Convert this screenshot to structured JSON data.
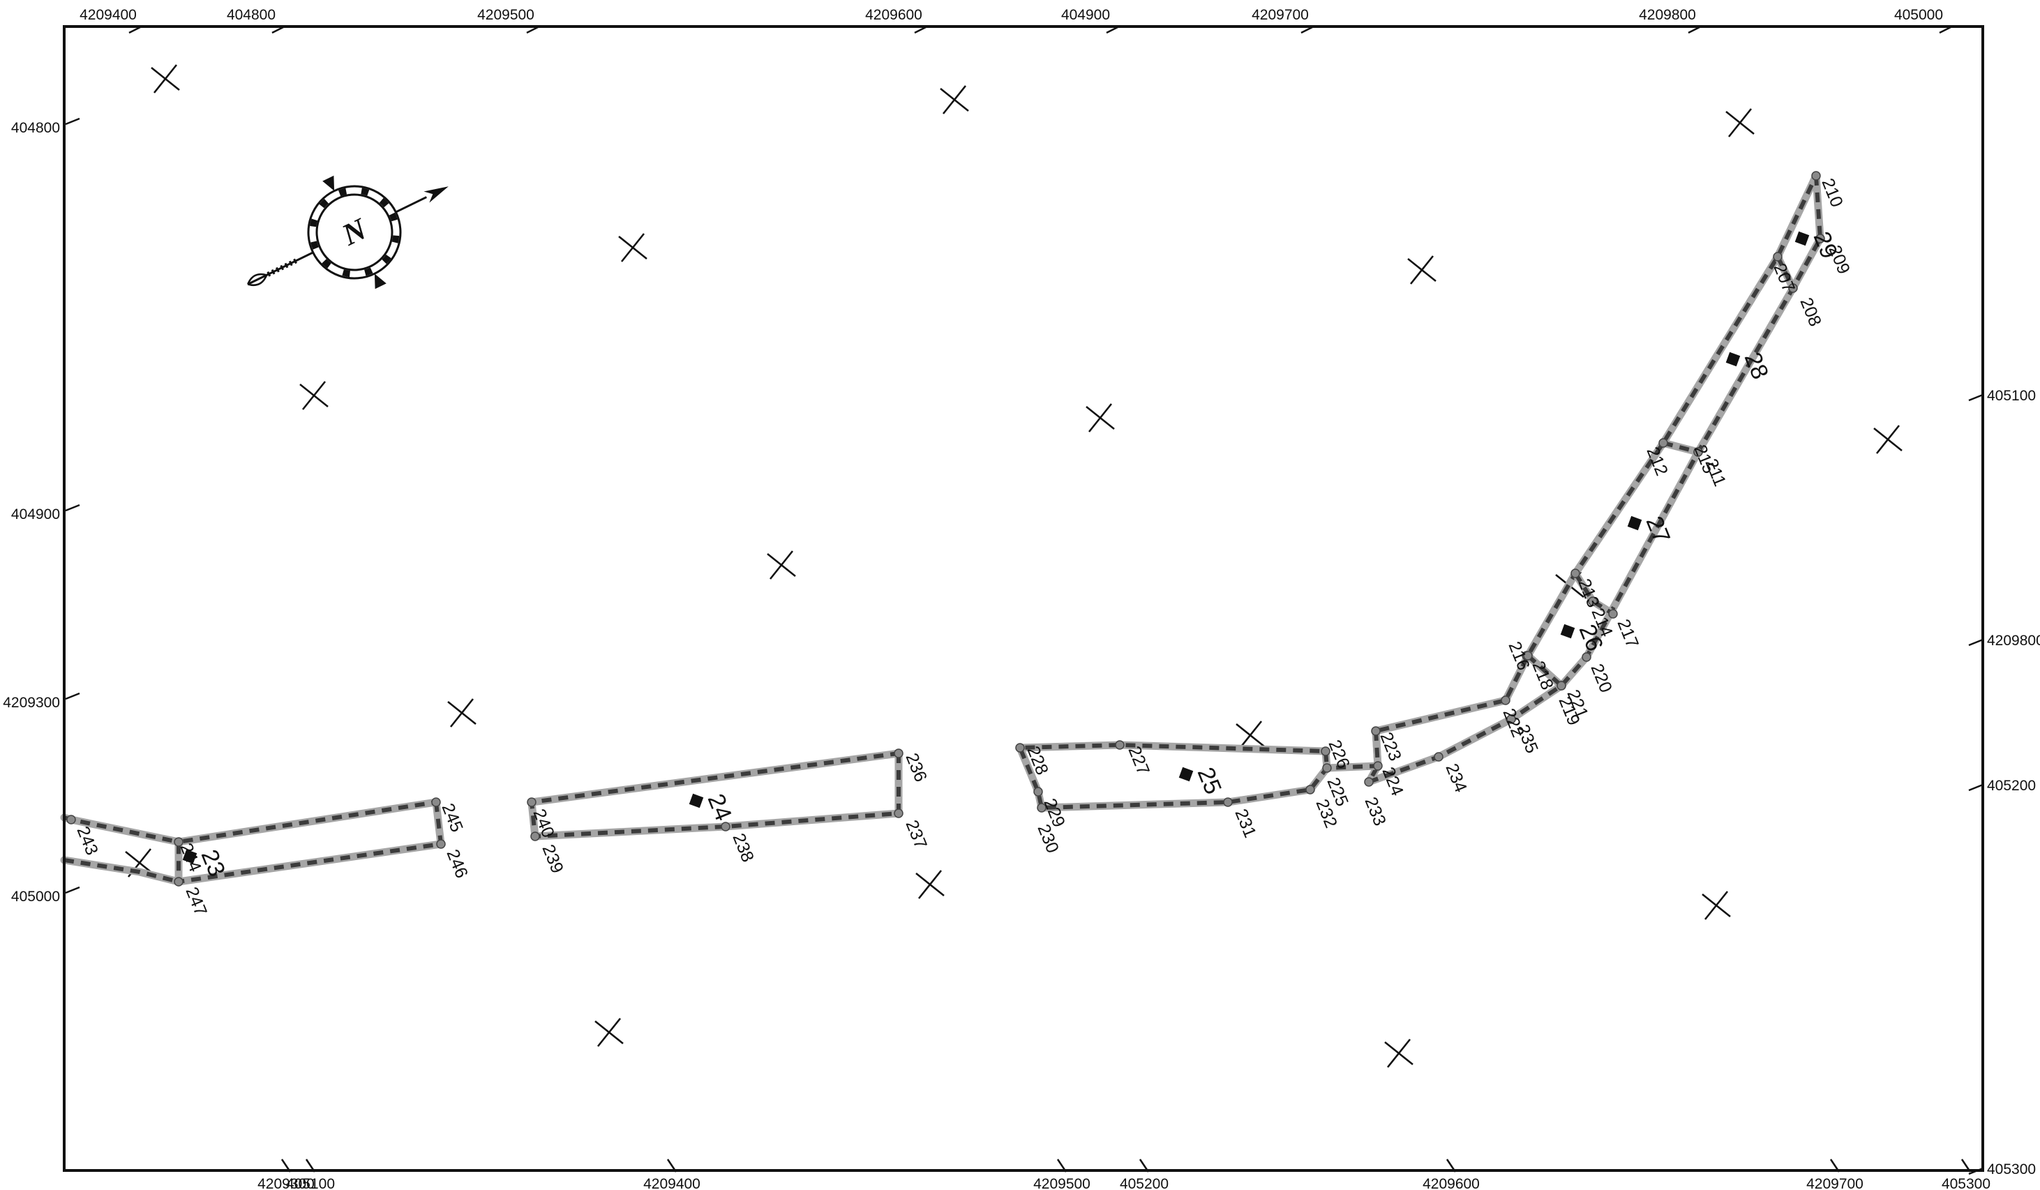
{
  "frame_coordinates": {
    "top": [
      "4209400",
      "404800",
      "4209500",
      "4209600",
      "404900",
      "4209700",
      "4209800",
      "405000"
    ],
    "bottom": [
      "4209300",
      "405100",
      "4209400",
      "4209500",
      "405200",
      "4209600",
      "4209700",
      "405300"
    ],
    "left": [
      "404800",
      "404900",
      "4209300",
      "405000"
    ],
    "right": [
      "405100",
      "4209800",
      "405200",
      "405300"
    ]
  },
  "north_arrow": {
    "label": "N"
  },
  "parcels": [
    {
      "id": "23",
      "label": "23"
    },
    {
      "id": "24",
      "label": "24"
    },
    {
      "id": "25",
      "label": "25"
    },
    {
      "id": "26",
      "label": "26"
    },
    {
      "id": "27",
      "label": "27"
    },
    {
      "id": "28",
      "label": "28"
    },
    {
      "id": "29",
      "label": "29"
    }
  ],
  "vertices": [
    {
      "id": "207",
      "label": "207"
    },
    {
      "id": "208",
      "label": "208"
    },
    {
      "id": "209",
      "label": "209"
    },
    {
      "id": "210",
      "label": "210"
    },
    {
      "id": "211",
      "label": "211"
    },
    {
      "id": "212",
      "label": "212"
    },
    {
      "id": "213",
      "label": "213"
    },
    {
      "id": "214",
      "label": "214"
    },
    {
      "id": "215",
      "label": "215"
    },
    {
      "id": "216",
      "label": "216"
    },
    {
      "id": "217",
      "label": "217"
    },
    {
      "id": "218",
      "label": "218"
    },
    {
      "id": "219",
      "label": "219"
    },
    {
      "id": "220",
      "label": "220"
    },
    {
      "id": "221",
      "label": "221"
    },
    {
      "id": "222",
      "label": "222"
    },
    {
      "id": "223",
      "label": "223"
    },
    {
      "id": "224",
      "label": "224"
    },
    {
      "id": "225",
      "label": "225"
    },
    {
      "id": "226",
      "label": "226"
    },
    {
      "id": "227",
      "label": "227"
    },
    {
      "id": "228",
      "label": "228"
    },
    {
      "id": "229",
      "label": "229"
    },
    {
      "id": "230",
      "label": "230"
    },
    {
      "id": "231",
      "label": "231"
    },
    {
      "id": "232",
      "label": "232"
    },
    {
      "id": "233",
      "label": "233"
    },
    {
      "id": "234",
      "label": "234"
    },
    {
      "id": "235",
      "label": "235"
    },
    {
      "id": "236",
      "label": "236"
    },
    {
      "id": "237",
      "label": "237"
    },
    {
      "id": "238",
      "label": "238"
    },
    {
      "id": "239",
      "label": "239"
    },
    {
      "id": "240",
      "label": "240"
    },
    {
      "id": "243",
      "label": "243"
    },
    {
      "id": "244",
      "label": "244"
    },
    {
      "id": "245",
      "label": "245"
    },
    {
      "id": "246",
      "label": "246"
    },
    {
      "id": "247",
      "label": "247"
    }
  ],
  "colors": {
    "boundary_base": "#a6a6a6",
    "boundary_dash": "#3c3c3c",
    "frame": "#111111"
  }
}
